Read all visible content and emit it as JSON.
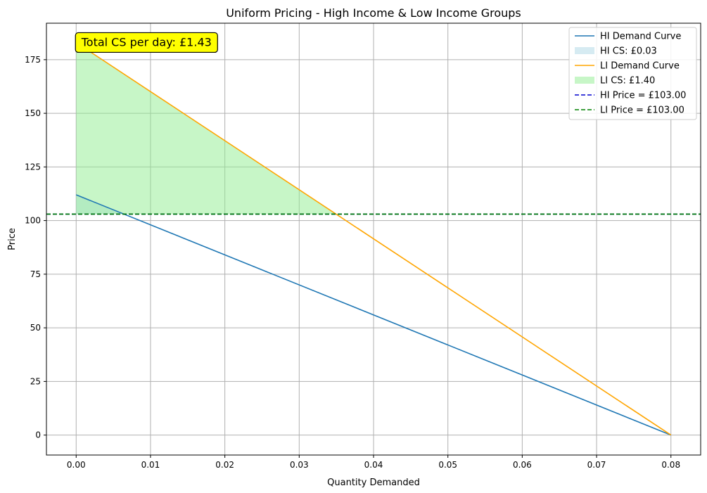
{
  "chart_data": {
    "type": "line",
    "title": "Uniform Pricing - High Income & Low Income Groups",
    "xlabel": "Quantity Demanded",
    "ylabel": "Price",
    "xlim": [
      -0.004,
      0.084
    ],
    "ylim": [
      -9.3,
      192
    ],
    "xticks": [
      0.0,
      0.01,
      0.02,
      0.03,
      0.04,
      0.05,
      0.06,
      0.07,
      0.08
    ],
    "xtick_labels": [
      "0.00",
      "0.01",
      "0.02",
      "0.03",
      "0.04",
      "0.05",
      "0.06",
      "0.07",
      "0.08"
    ],
    "yticks": [
      0,
      25,
      50,
      75,
      100,
      125,
      150,
      175
    ],
    "ytick_labels": [
      "0",
      "25",
      "50",
      "75",
      "100",
      "125",
      "150",
      "175"
    ],
    "grid": true,
    "legend_position": "top-right",
    "series": [
      {
        "name": "HI Demand Curve",
        "kind": "line",
        "color": "#1f77b4",
        "x": [
          0.0,
          0.08
        ],
        "y": [
          112,
          0
        ]
      },
      {
        "name": "HI CS: £0.03",
        "kind": "fill",
        "color": "#add8e6",
        "x": [
          0.0,
          0.0064
        ],
        "y_top": [
          112,
          103
        ],
        "y_base": 103
      },
      {
        "name": "LI Demand Curve",
        "kind": "line",
        "color": "#ffa500",
        "x": [
          0.0,
          0.08
        ],
        "y": [
          183,
          0
        ]
      },
      {
        "name": "LI CS: £1.40",
        "kind": "fill",
        "color": "#90ee90",
        "x": [
          0.0,
          0.035
        ],
        "y_top": [
          183,
          103
        ],
        "y_base": 103
      },
      {
        "name": "HI Price = £103.00",
        "kind": "hline",
        "color": "#0000cd",
        "y": 103.0
      },
      {
        "name": "LI Price = £103.00",
        "kind": "hline",
        "color": "#008000",
        "y": 103.0
      }
    ],
    "annotation": {
      "text": "Total CS per day: £1.43",
      "x": 0.0,
      "y": 183,
      "background": "#ffff00"
    }
  }
}
